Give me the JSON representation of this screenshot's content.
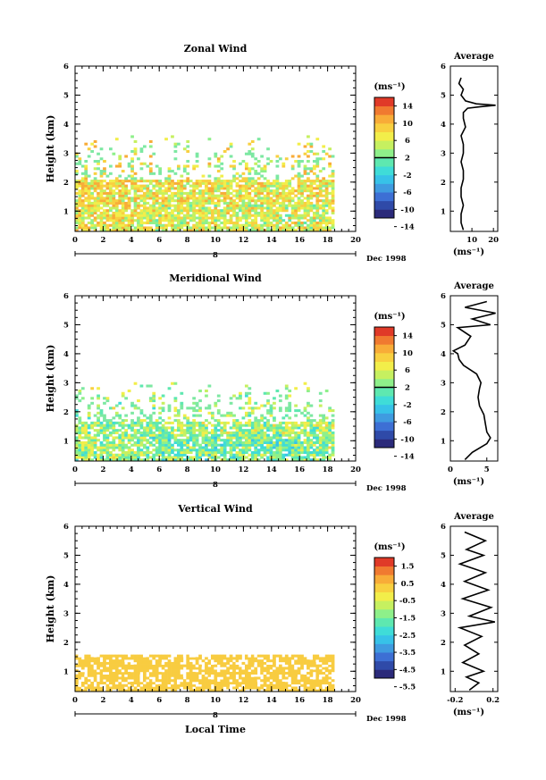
{
  "colors": {
    "scale": [
      "#2b2a7a",
      "#2f4aa8",
      "#3d6fd4",
      "#3f9be0",
      "#37c2e8",
      "#3fdcd8",
      "#5ee8b0",
      "#8ef08a",
      "#c6f060",
      "#f2ee4a",
      "#f8d040",
      "#f8ac38",
      "#f07a30",
      "#e03a28"
    ],
    "sparse_cells": "#7de8a2",
    "vertical_cells": "#f8cc40"
  },
  "chart_data": [
    {
      "type": "heatmap",
      "title": "Zonal Wind",
      "ylabel": "Height (km)",
      "xlabel": "",
      "date_label": "Dec 1998",
      "day_label": "8",
      "xlim": [
        0,
        20
      ],
      "ylim": [
        0.3,
        6
      ],
      "x_ticks": [
        "0",
        "2",
        "4",
        "6",
        "8",
        "10",
        "12",
        "14",
        "16",
        "18",
        "20"
      ],
      "y_ticks": [
        "1",
        "2",
        "3",
        "4",
        "5",
        "6"
      ],
      "colorbar": {
        "unit": "(ms⁻¹)",
        "ticks": [
          "14",
          "10",
          "6",
          "2",
          "-2",
          "-6",
          "-10",
          "-14"
        ],
        "range": [
          -16,
          16
        ],
        "marker": 0
      },
      "data_extent": {
        "x": [
          0,
          18.3
        ],
        "y": [
          0.3,
          3.6
        ]
      },
      "mean_value": 6,
      "spread": 5,
      "average_profile": {
        "title": "Average",
        "xlim": [
          0,
          22
        ],
        "x_ticks": [
          "10",
          "20"
        ],
        "xlabel": "(ms⁻¹)",
        "heights": [
          0.35,
          0.6,
          0.9,
          1.2,
          1.5,
          1.8,
          2.1,
          2.4,
          2.7,
          3.0,
          3.3,
          3.6,
          3.9,
          4.2,
          4.4,
          4.55,
          4.6,
          4.65,
          4.7,
          4.8,
          5.0,
          5.2,
          5.4,
          5.6
        ],
        "values": [
          6,
          5,
          5,
          6,
          5,
          5,
          6,
          6,
          5,
          6,
          6,
          5,
          7,
          6,
          6,
          8,
          14,
          21,
          12,
          7,
          5,
          6,
          4,
          5
        ]
      }
    },
    {
      "type": "heatmap",
      "title": "Meridional Wind",
      "ylabel": "Height (km)",
      "xlabel": "",
      "date_label": "Dec 1998",
      "day_label": "8",
      "xlim": [
        0,
        20
      ],
      "ylim": [
        0.3,
        6
      ],
      "x_ticks": [
        "0",
        "2",
        "4",
        "6",
        "8",
        "10",
        "12",
        "14",
        "16",
        "18",
        "20"
      ],
      "y_ticks": [
        "1",
        "2",
        "3",
        "4",
        "5",
        "6"
      ],
      "colorbar": {
        "unit": "(ms⁻¹)",
        "ticks": [
          "14",
          "10",
          "6",
          "2",
          "-2",
          "-6",
          "-10",
          "-14"
        ],
        "range": [
          -16,
          16
        ],
        "marker": 0
      },
      "data_extent": {
        "x": [
          0,
          18.3
        ],
        "y": [
          0.3,
          3.0
        ]
      },
      "mean_value": 2,
      "spread": 5,
      "average_profile": {
        "title": "Average",
        "xlim": [
          0,
          6.5
        ],
        "x_ticks": [
          "0",
          "5"
        ],
        "xlabel": "(ms⁻¹)",
        "heights": [
          0.35,
          0.6,
          0.9,
          1.1,
          1.3,
          1.6,
          1.9,
          2.2,
          2.5,
          2.8,
          3.0,
          3.3,
          3.6,
          3.8,
          4.0,
          4.1,
          4.3,
          4.6,
          4.9,
          5.0,
          5.2,
          5.4,
          5.6,
          5.8
        ],
        "values": [
          2,
          3,
          5,
          5.5,
          5,
          4.8,
          4.6,
          4,
          3.8,
          4,
          4.2,
          3.6,
          1.8,
          1.2,
          1,
          0.4,
          2,
          2.8,
          1,
          5.5,
          3,
          6.2,
          2,
          5
        ]
      }
    },
    {
      "type": "heatmap",
      "title": "Vertical Wind",
      "ylabel": "Height (km)",
      "xlabel": "Local Time",
      "date_label": "Dec 1998",
      "day_label": "8",
      "xlim": [
        0,
        20
      ],
      "ylim": [
        0.3,
        6
      ],
      "x_ticks": [
        "0",
        "2",
        "4",
        "6",
        "8",
        "10",
        "12",
        "14",
        "16",
        "18",
        "20"
      ],
      "y_ticks": [
        "1",
        "2",
        "3",
        "4",
        "5",
        "6"
      ],
      "colorbar": {
        "unit": "(ms⁻¹)",
        "ticks": [
          "1.5",
          "0.5",
          "-0.5",
          "-1.5",
          "-2.5",
          "-3.5",
          "-4.5",
          "-5.5"
        ],
        "range": [
          -6,
          2
        ],
        "marker": null
      },
      "data_extent": {
        "x": [
          0,
          18.3
        ],
        "y": [
          0.3,
          1.5
        ]
      },
      "mean_value": 0.8,
      "spread": 0.3,
      "average_profile": {
        "title": "Average",
        "xlim": [
          -0.25,
          0.25
        ],
        "x_ticks": [
          "-0.2",
          "0.2"
        ],
        "xlabel": "(ms⁻¹)",
        "heights": [
          0.35,
          0.6,
          0.8,
          1.0,
          1.3,
          1.6,
          1.9,
          2.2,
          2.5,
          2.7,
          2.9,
          3.2,
          3.5,
          3.8,
          4.1,
          4.4,
          4.7,
          5.0,
          5.2,
          5.5,
          5.8
        ],
        "values": [
          -0.05,
          0.05,
          -0.08,
          0.1,
          -0.12,
          0.05,
          -0.1,
          0.08,
          -0.15,
          0.22,
          -0.05,
          0.18,
          -0.12,
          0.15,
          -0.1,
          0.12,
          -0.15,
          0.1,
          -0.08,
          0.12,
          -0.1
        ]
      }
    }
  ]
}
